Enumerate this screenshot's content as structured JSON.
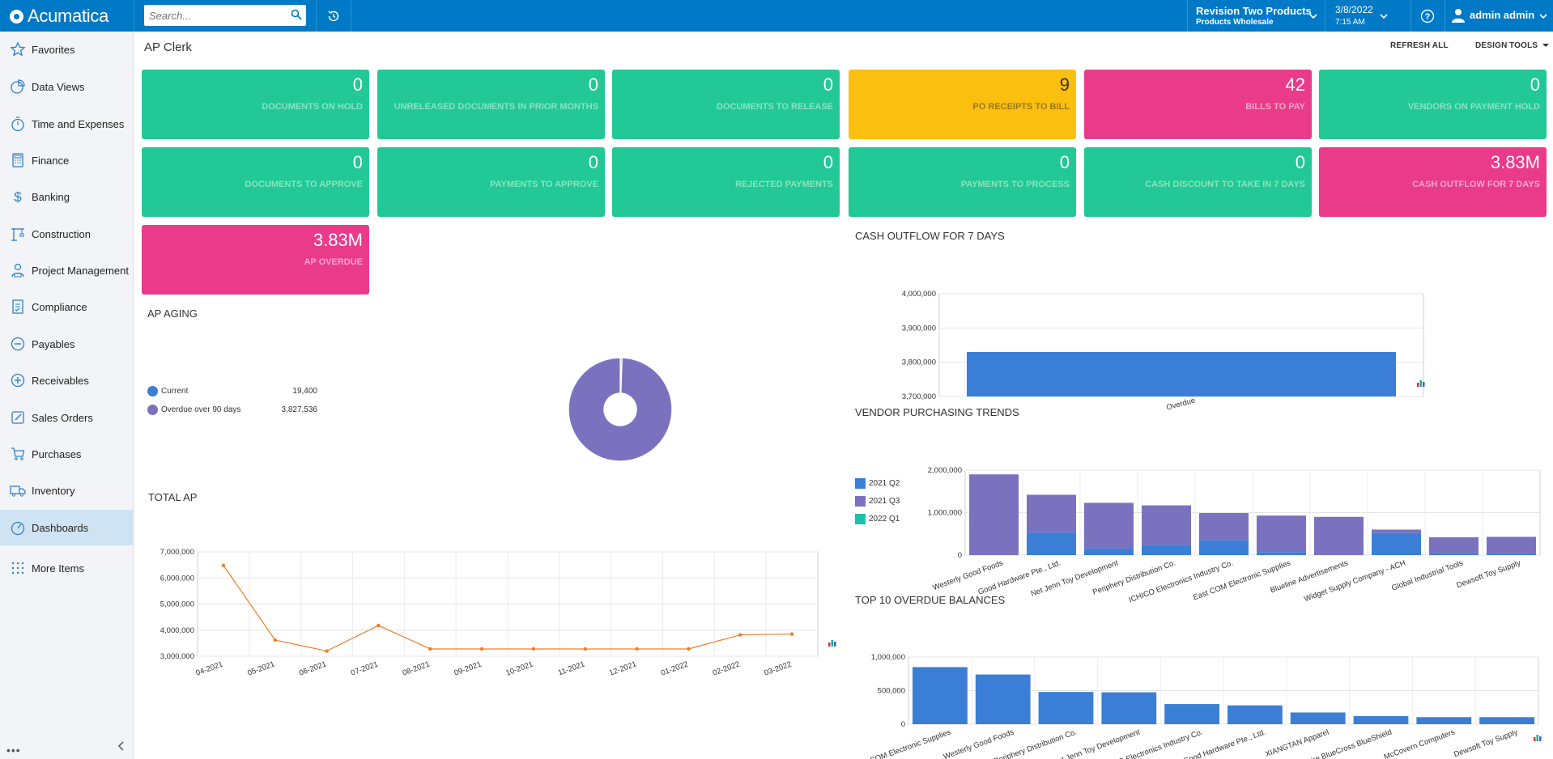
{
  "topbar": {
    "brand": "Acumatica",
    "search_placeholder": "Search...",
    "tenant_name": "Revision Two Products",
    "tenant_branch": "Products Wholesale",
    "date": "3/8/2022",
    "time": "7:15 AM",
    "user_name": "admin admin"
  },
  "sidebar": {
    "items": [
      {
        "label": "Favorites",
        "icon": "star-icon"
      },
      {
        "label": "Data Views",
        "icon": "pie-chart-icon"
      },
      {
        "label": "Time and Expenses",
        "icon": "stopwatch-icon"
      },
      {
        "label": "Finance",
        "icon": "calculator-icon"
      },
      {
        "label": "Banking",
        "icon": "dollar-icon"
      },
      {
        "label": "Construction",
        "icon": "crane-icon"
      },
      {
        "label": "Project Management",
        "icon": "project-manager-icon"
      },
      {
        "label": "Compliance",
        "icon": "checklist-icon"
      },
      {
        "label": "Payables",
        "icon": "minus-circle-icon"
      },
      {
        "label": "Receivables",
        "icon": "plus-circle-icon"
      },
      {
        "label": "Sales Orders",
        "icon": "edit-icon"
      },
      {
        "label": "Purchases",
        "icon": "cart-icon"
      },
      {
        "label": "Inventory",
        "icon": "truck-icon"
      },
      {
        "label": "Dashboards",
        "icon": "gauge-icon"
      },
      {
        "label": "More Items",
        "icon": "grid-dots-icon"
      }
    ],
    "footer_dots": "•••"
  },
  "page": {
    "title": "AP Clerk",
    "toolbar": {
      "refresh": "REFRESH ALL",
      "design": "DESIGN",
      "tools": "TOOLS"
    }
  },
  "tiles": [
    {
      "value": "0",
      "label": "DOCUMENTS ON HOLD",
      "color": "#22c896"
    },
    {
      "value": "0",
      "label": "UNRELEASED DOCUMENTS IN PRIOR MONTHS",
      "color": "#22c896"
    },
    {
      "value": "0",
      "label": "DOCUMENTS TO RELEASE",
      "color": "#22c896"
    },
    {
      "value": "9",
      "label": "PO RECEIPTS TO BILL",
      "color": "#fbbf10"
    },
    {
      "value": "42",
      "label": "BILLS TO PAY",
      "color": "#ea3b8a"
    },
    {
      "value": "0",
      "label": "VENDORS ON PAYMENT HOLD",
      "color": "#22c896"
    },
    {
      "value": "0",
      "label": "DOCUMENTS TO APPROVE",
      "color": "#22c896"
    },
    {
      "value": "0",
      "label": "PAYMENTS TO APPROVE",
      "color": "#22c896"
    },
    {
      "value": "0",
      "label": "REJECTED PAYMENTS",
      "color": "#22c896"
    },
    {
      "value": "0",
      "label": "PAYMENTS TO PROCESS",
      "color": "#22c896"
    },
    {
      "value": "0",
      "label": "CASH DISCOUNT TO TAKE IN 7 DAYS",
      "color": "#22c896"
    },
    {
      "value": "3.83M",
      "label": "CASH OUTFLOW FOR 7 DAYS",
      "color": "#ea3b8a"
    },
    {
      "value": "3.83M",
      "label": "AP OVERDUE",
      "color": "#ea3b8a"
    }
  ],
  "chart_data": [
    {
      "type": "pie",
      "title": "AP AGING",
      "categories": [
        "Current",
        "Overdue over 90 days"
      ],
      "values": [
        19400,
        3827536
      ],
      "value_labels": [
        "19,400",
        "3,827,536"
      ],
      "colors": [
        "#3a7fd5",
        "#7a72be"
      ],
      "legend_position": "left"
    },
    {
      "type": "line",
      "title": "TOTAL AP",
      "categories": [
        "04-2021",
        "05-2021",
        "06-2021",
        "07-2021",
        "08-2021",
        "09-2021",
        "10-2021",
        "11-2021",
        "12-2021",
        "01-2022",
        "02-2022",
        "03-2022"
      ],
      "values": [
        6480000,
        3620000,
        3200000,
        4180000,
        3280000,
        3280000,
        3280000,
        3280000,
        3280000,
        3280000,
        3820000,
        3850000
      ],
      "ylim": [
        3000000,
        7000000
      ],
      "yticks": [
        "7,000,000",
        "6,000,000",
        "5,000,000",
        "4,000,000",
        "3,000,000"
      ],
      "color": "#f07d2a",
      "grid": true
    },
    {
      "type": "bar",
      "title": "CASH OUTFLOW FOR 7 DAYS",
      "categories": [
        "Overdue"
      ],
      "values": [
        3830000
      ],
      "ylim": [
        3700000,
        4000000
      ],
      "yticks": [
        "4,000,000",
        "3,900,000",
        "3,800,000",
        "3,700,000"
      ],
      "color": "#3a7fd5",
      "grid": true
    },
    {
      "type": "bar",
      "title": "VENDOR PURCHASING TRENDS",
      "stacked": true,
      "categories": [
        "Westerly Good Foods",
        "Good Hardware Pte., Ltd.",
        "Net Jenn Toy Development",
        "Periphery Distribution Co.",
        "ICHICO Electronics Industry Co.",
        "East COM Electronic Supplies",
        "Blueline Advertisements",
        "Widget Supply Company - ACH",
        "Global Industrial Tools",
        "Dewsoft Toy Supply"
      ],
      "series": [
        {
          "name": "2021 Q2",
          "color": "#3a7fd5",
          "values": [
            0,
            530000,
            160000,
            240000,
            350000,
            70000,
            0,
            520000,
            50000,
            40000
          ]
        },
        {
          "name": "2021 Q3",
          "color": "#7a72be",
          "values": [
            1900000,
            890000,
            1070000,
            930000,
            640000,
            860000,
            900000,
            80000,
            370000,
            390000
          ]
        },
        {
          "name": "2022 Q1",
          "color": "#1fbfad",
          "values": [
            0,
            0,
            0,
            0,
            0,
            0,
            0,
            0,
            0,
            0
          ]
        }
      ],
      "ylim": [
        0,
        2000000
      ],
      "yticks": [
        "2,000,000",
        "1,000,000",
        "0"
      ],
      "legend_position": "left",
      "grid": true
    },
    {
      "type": "bar",
      "title": "TOP 10 OVERDUE BALANCES",
      "categories": [
        "East COM Electronic Supplies",
        "Westerly Good Foods",
        "Periphery Distribution Co.",
        "Net Jenn Toy Development",
        "ICHICO Electronics Industry Co.",
        "Good Hardware Pte., Ltd.",
        "XIANGTAN Apparel",
        "Empire BlueCross BlueShield",
        "McCovern Computers",
        "Dewsoft Toy Supply"
      ],
      "category_labels": [
        "t COM Electronic Supplies",
        "Westerly Good Foods",
        "Periphery Distribution Co.",
        "Net Jenn Toy Development",
        "ICHICO Electronics Industry Co.",
        "Good Hardware Pte., Ltd.",
        "XIANGTAN Apparel",
        "Empire BlueCross BlueShield",
        "McCovern Computers",
        "Dewsoft Toy Supply"
      ],
      "values": [
        850000,
        740000,
        480000,
        475000,
        300000,
        280000,
        175000,
        120000,
        105000,
        105000
      ],
      "ylim": [
        0,
        1000000
      ],
      "yticks": [
        "1,000,000",
        "500,000",
        "0"
      ],
      "color": "#3a7fd5",
      "grid": true
    }
  ]
}
